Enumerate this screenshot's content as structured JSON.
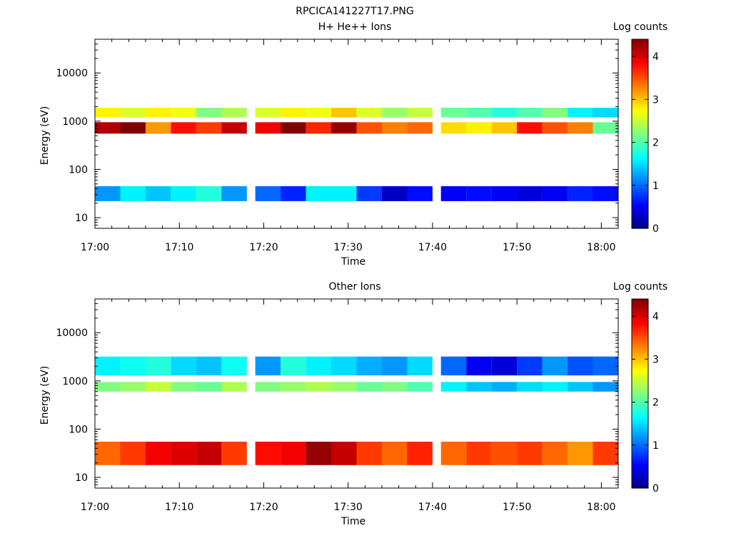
{
  "figure_title": "RPCICA141227T17.PNG",
  "chart_data": [
    {
      "type": "heatmap",
      "title": "H+ He++ Ions",
      "xlabel": "Time",
      "ylabel": "Energy (eV)",
      "yscale": "log",
      "xlim": [
        "17:00",
        "18:02"
      ],
      "ylim": [
        6,
        50000
      ],
      "x_ticks": [
        "17:00",
        "17:10",
        "17:20",
        "17:30",
        "17:40",
        "17:50",
        "18:00"
      ],
      "y_ticks": [
        "10",
        "100",
        "1000",
        "10000"
      ],
      "time_bins": [
        "17:00",
        "17:03",
        "17:06",
        "17:09",
        "17:12",
        "17:15",
        "17:19",
        "17:22",
        "17:25",
        "17:28",
        "17:31",
        "17:34",
        "17:37",
        "17:41",
        "17:44",
        "17:47",
        "17:50",
        "17:53",
        "17:56",
        "17:59"
      ],
      "energy_bands": [
        {
          "name": "main",
          "energy_range_eV": [
            550,
            950
          ],
          "log_counts": [
            4.2,
            4.4,
            3.2,
            3.8,
            3.6,
            4.1,
            3.9,
            4.4,
            3.7,
            4.3,
            3.5,
            3.3,
            3.4,
            2.9,
            2.8,
            3.0,
            3.8,
            3.5,
            3.3,
            2.1
          ]
        },
        {
          "name": "secondary",
          "energy_range_eV": [
            1200,
            1900
          ],
          "log_counts": [
            2.8,
            2.6,
            2.8,
            2.7,
            2.2,
            2.4,
            2.6,
            2.8,
            2.7,
            3.0,
            2.6,
            2.3,
            2.5,
            2.1,
            2.0,
            1.8,
            2.0,
            2.2,
            1.6,
            1.5
          ]
        },
        {
          "name": "low",
          "energy_range_eV": [
            22,
            45
          ],
          "log_counts": [
            1.2,
            1.6,
            1.4,
            1.6,
            1.8,
            1.2,
            1.0,
            0.7,
            1.6,
            1.6,
            0.8,
            0.3,
            0.6,
            0.5,
            0.6,
            0.5,
            0.4,
            0.5,
            0.7,
            0.6
          ]
        }
      ],
      "colorbar": {
        "label": "Log counts",
        "range": [
          0,
          4.4
        ],
        "ticks": [
          "0",
          "1",
          "2",
          "3",
          "4"
        ]
      }
    },
    {
      "type": "heatmap",
      "title": "Other Ions",
      "xlabel": "Time",
      "ylabel": "Energy (eV)",
      "yscale": "log",
      "xlim": [
        "17:00",
        "18:02"
      ],
      "ylim": [
        6,
        50000
      ],
      "x_ticks": [
        "17:00",
        "17:10",
        "17:20",
        "17:30",
        "17:40",
        "17:50",
        "18:00"
      ],
      "y_ticks": [
        "10",
        "100",
        "1000",
        "10000"
      ],
      "time_bins": [
        "17:00",
        "17:03",
        "17:06",
        "17:09",
        "17:12",
        "17:15",
        "17:19",
        "17:22",
        "17:25",
        "17:28",
        "17:31",
        "17:34",
        "17:37",
        "17:41",
        "17:44",
        "17:47",
        "17:50",
        "17:53",
        "17:56",
        "17:59"
      ],
      "energy_bands": [
        {
          "name": "main",
          "energy_range_eV": [
            18,
            55
          ],
          "log_counts": [
            3.4,
            3.6,
            3.9,
            4.0,
            4.1,
            3.6,
            3.8,
            3.9,
            4.3,
            4.1,
            3.6,
            3.4,
            3.7,
            3.4,
            3.6,
            3.5,
            3.6,
            3.4,
            3.2,
            3.6
          ]
        },
        {
          "name": "secondary",
          "energy_range_eV": [
            600,
            950
          ],
          "log_counts": [
            2.2,
            2.3,
            2.5,
            2.2,
            2.1,
            2.4,
            2.2,
            2.3,
            2.4,
            2.3,
            2.1,
            2.2,
            2.0,
            1.6,
            1.4,
            1.3,
            1.5,
            1.6,
            1.4,
            1.2
          ]
        },
        {
          "name": "upper",
          "energy_range_eV": [
            1300,
            3200
          ],
          "log_counts": [
            1.6,
            1.7,
            1.8,
            1.5,
            1.4,
            1.7,
            1.2,
            1.8,
            1.6,
            1.5,
            1.3,
            1.2,
            1.5,
            1.0,
            0.5,
            0.4,
            0.8,
            1.2,
            0.9,
            1.0
          ]
        }
      ],
      "colorbar": {
        "label": "Log counts",
        "range": [
          0,
          4.4
        ],
        "ticks": [
          "0",
          "1",
          "2",
          "3",
          "4"
        ]
      }
    }
  ]
}
